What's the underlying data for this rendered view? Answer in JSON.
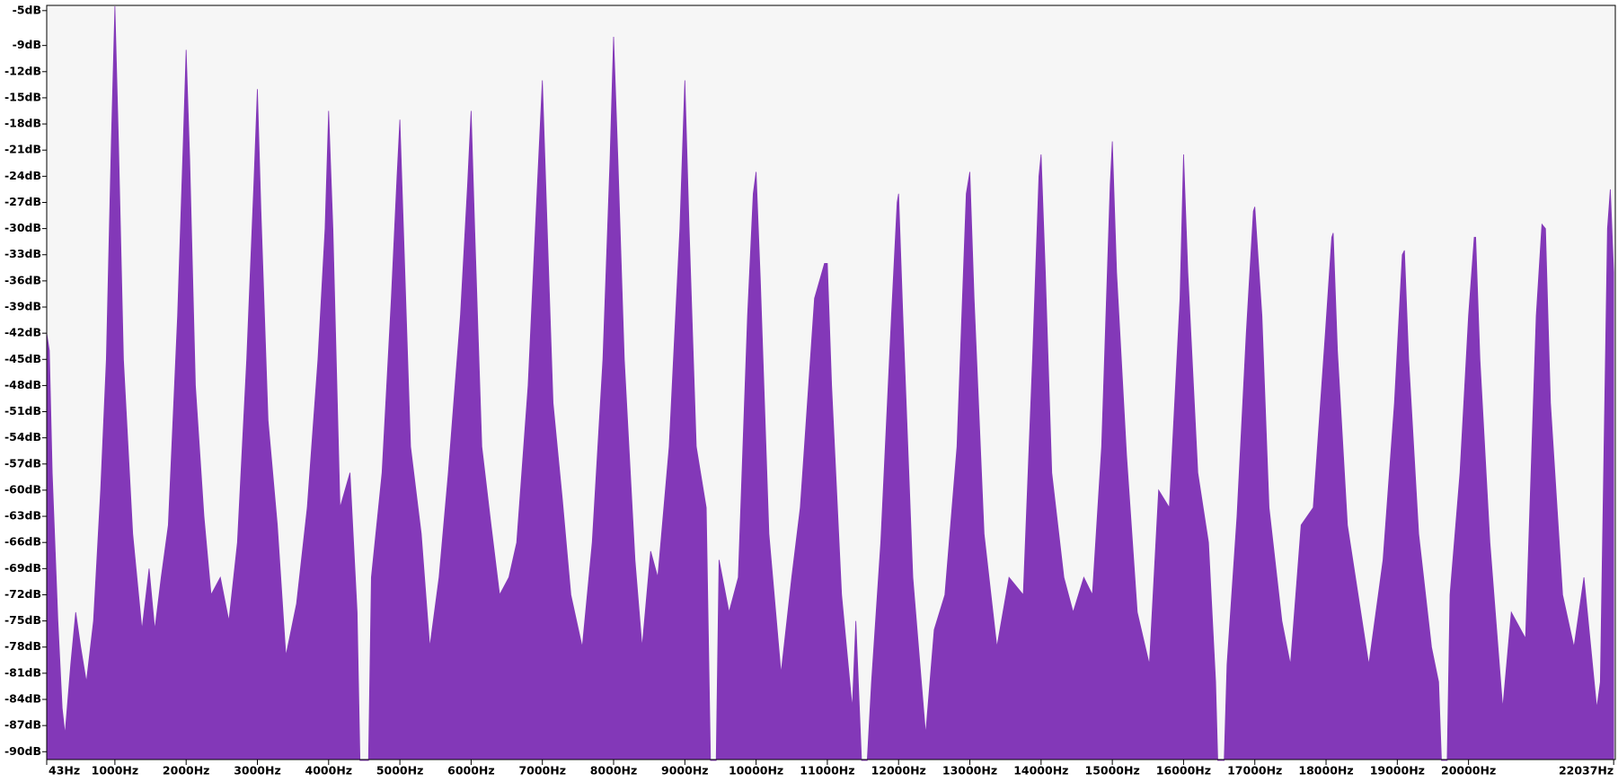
{
  "chart_data": {
    "type": "area",
    "color": "#8338b8",
    "x": [
      43,
      80,
      120,
      200,
      260,
      300,
      380,
      450,
      520,
      600,
      700,
      800,
      880,
      950,
      1000,
      1050,
      1120,
      1250,
      1380,
      1480,
      1560,
      1650,
      1750,
      1880,
      1960,
      2000,
      2050,
      2130,
      2250,
      2350,
      2480,
      2600,
      2720,
      2850,
      2950,
      3000,
      3050,
      3150,
      3280,
      3400,
      3550,
      3700,
      3850,
      3950,
      4000,
      4060,
      4160,
      4300,
      4400,
      4440,
      4560,
      4600,
      4750,
      4880,
      4960,
      5000,
      5050,
      5150,
      5300,
      5420,
      5550,
      5680,
      5850,
      5950,
      6000,
      6050,
      6150,
      6280,
      6400,
      6530,
      6640,
      6800,
      6930,
      7000,
      7060,
      7150,
      7280,
      7400,
      7560,
      7700,
      7850,
      7950,
      8000,
      8060,
      8150,
      8300,
      8400,
      8520,
      8620,
      8780,
      8930,
      9000,
      9060,
      9160,
      9300,
      9360,
      9440,
      9480,
      9620,
      9750,
      9880,
      9960,
      10000,
      10060,
      10180,
      10350,
      10500,
      10620,
      10820,
      10960,
      11000,
      11060,
      11200,
      11350,
      11400,
      11480,
      11560,
      11620,
      11750,
      11900,
      11980,
      12000,
      12060,
      12200,
      12380,
      12500,
      12650,
      12820,
      12950,
      13000,
      13060,
      13200,
      13380,
      13550,
      13750,
      13880,
      13970,
      14000,
      14060,
      14150,
      14320,
      14450,
      14600,
      14720,
      14850,
      14970,
      15000,
      15060,
      15200,
      15350,
      15520,
      15650,
      15800,
      15950,
      16000,
      16060,
      16200,
      16350,
      16450,
      16480,
      16570,
      16610,
      16750,
      16880,
      16980,
      17000,
      17100,
      17200,
      17380,
      17500,
      17650,
      17820,
      17990,
      18080,
      18100,
      18160,
      18300,
      18450,
      18600,
      18800,
      18960,
      19070,
      19100,
      19160,
      19300,
      19480,
      19580,
      19620,
      19700,
      19740,
      19880,
      20000,
      20080,
      20100,
      20160,
      20300,
      20480,
      20600,
      20800,
      20950,
      21030,
      21080,
      21150,
      21320,
      21480,
      21620,
      21800,
      21850,
      21950,
      21990,
      22037
    ],
    "values": [
      -42,
      -44,
      -58,
      -75,
      -85,
      -88,
      -80,
      -74,
      -78,
      -82,
      -75,
      -60,
      -45,
      -20,
      -4.5,
      -20,
      -45,
      -65,
      -76,
      -69,
      -76,
      -70,
      -64,
      -40,
      -20,
      -9.5,
      -22,
      -48,
      -63,
      -72,
      -70,
      -75,
      -66,
      -45,
      -25,
      -14,
      -28,
      -52,
      -64,
      -79,
      -73,
      -62,
      -45,
      -30,
      -16.5,
      -30,
      -62,
      -58,
      -74,
      -91,
      -91,
      -70,
      -58,
      -38,
      -24,
      -17.5,
      -30,
      -55,
      -65,
      -78,
      -70,
      -58,
      -40,
      -25,
      -16.5,
      -30,
      -55,
      -64,
      -72,
      -70,
      -66,
      -48,
      -25,
      -13,
      -28,
      -50,
      -61,
      -72,
      -78,
      -66,
      -45,
      -22,
      -8,
      -22,
      -45,
      -68,
      -78,
      -67,
      -70,
      -55,
      -30,
      -13,
      -30,
      -55,
      -62,
      -91,
      -91,
      -68,
      -74,
      -70,
      -40,
      -26,
      -23.5,
      -36,
      -65,
      -81,
      -70,
      -62,
      -38,
      -34,
      -34,
      -48,
      -72,
      -85,
      -75,
      -91,
      -91,
      -82,
      -66,
      -40,
      -27,
      -26,
      -40,
      -70,
      -88,
      -76,
      -72,
      -55,
      -26,
      -23.5,
      -38,
      -65,
      -78,
      -70,
      -72,
      -45,
      -24,
      -21.5,
      -35,
      -58,
      -70,
      -74,
      -70,
      -72,
      -55,
      -25,
      -20,
      -35,
      -56,
      -74,
      -80,
      -60,
      -62,
      -38,
      -21.5,
      -35,
      -58,
      -66,
      -82,
      -91,
      -91,
      -80,
      -63,
      -42,
      -28,
      -27.5,
      -40,
      -62,
      -75,
      -80,
      -64,
      -62,
      -42,
      -31,
      -30.5,
      -44,
      -64,
      -72,
      -80,
      -68,
      -50,
      -33,
      -32.5,
      -45,
      -65,
      -78,
      -82,
      -91,
      -91,
      -72,
      -58,
      -40,
      -31,
      -31,
      -45,
      -66,
      -85,
      -74,
      -77,
      -40,
      -29.5,
      -30,
      -50,
      -72,
      -78,
      -70,
      -85,
      -82,
      -30,
      -25.5,
      -35
    ],
    "xlim": [
      43,
      22060
    ],
    "ylim": [
      -90.9,
      -4.4
    ],
    "xticks": [
      {
        "value": 43,
        "label": "43Hz"
      },
      {
        "value": 1000,
        "label": "1000Hz"
      },
      {
        "value": 2000,
        "label": "2000Hz"
      },
      {
        "value": 3000,
        "label": "3000Hz"
      },
      {
        "value": 4000,
        "label": "4000Hz"
      },
      {
        "value": 5000,
        "label": "5000Hz"
      },
      {
        "value": 6000,
        "label": "6000Hz"
      },
      {
        "value": 7000,
        "label": "7000Hz"
      },
      {
        "value": 8000,
        "label": "8000Hz"
      },
      {
        "value": 9000,
        "label": "9000Hz"
      },
      {
        "value": 10000,
        "label": "10000Hz"
      },
      {
        "value": 11000,
        "label": "11000Hz"
      },
      {
        "value": 12000,
        "label": "12000Hz"
      },
      {
        "value": 13000,
        "label": "13000Hz"
      },
      {
        "value": 14000,
        "label": "14000Hz"
      },
      {
        "value": 15000,
        "label": "15000Hz"
      },
      {
        "value": 16000,
        "label": "16000Hz"
      },
      {
        "value": 17000,
        "label": "17000Hz"
      },
      {
        "value": 18000,
        "label": "18000Hz"
      },
      {
        "value": 19000,
        "label": "19000Hz"
      },
      {
        "value": 20000,
        "label": "20000Hz"
      },
      {
        "value": 22037,
        "label": "22037Hz"
      }
    ],
    "yticks": [
      {
        "value": -5,
        "label": "-5dB"
      },
      {
        "value": -9,
        "label": "-9dB"
      },
      {
        "value": -12,
        "label": "-12dB"
      },
      {
        "value": -15,
        "label": "-15dB"
      },
      {
        "value": -18,
        "label": "-18dB"
      },
      {
        "value": -21,
        "label": "-21dB"
      },
      {
        "value": -24,
        "label": "-24dB"
      },
      {
        "value": -27,
        "label": "-27dB"
      },
      {
        "value": -30,
        "label": "-30dB"
      },
      {
        "value": -33,
        "label": "-33dB"
      },
      {
        "value": -36,
        "label": "-36dB"
      },
      {
        "value": -39,
        "label": "-39dB"
      },
      {
        "value": -42,
        "label": "-42dB"
      },
      {
        "value": -45,
        "label": "-45dB"
      },
      {
        "value": -48,
        "label": "-48dB"
      },
      {
        "value": -51,
        "label": "-51dB"
      },
      {
        "value": -54,
        "label": "-54dB"
      },
      {
        "value": -57,
        "label": "-57dB"
      },
      {
        "value": -60,
        "label": "-60dB"
      },
      {
        "value": -63,
        "label": "-63dB"
      },
      {
        "value": -66,
        "label": "-66dB"
      },
      {
        "value": -69,
        "label": "-69dB"
      },
      {
        "value": -72,
        "label": "-72dB"
      },
      {
        "value": -75,
        "label": "-75dB"
      },
      {
        "value": -78,
        "label": "-78dB"
      },
      {
        "value": -81,
        "label": "-81dB"
      },
      {
        "value": -84,
        "label": "-84dB"
      },
      {
        "value": -87,
        "label": "-87dB"
      },
      {
        "value": -90,
        "label": "-90dB"
      }
    ]
  }
}
